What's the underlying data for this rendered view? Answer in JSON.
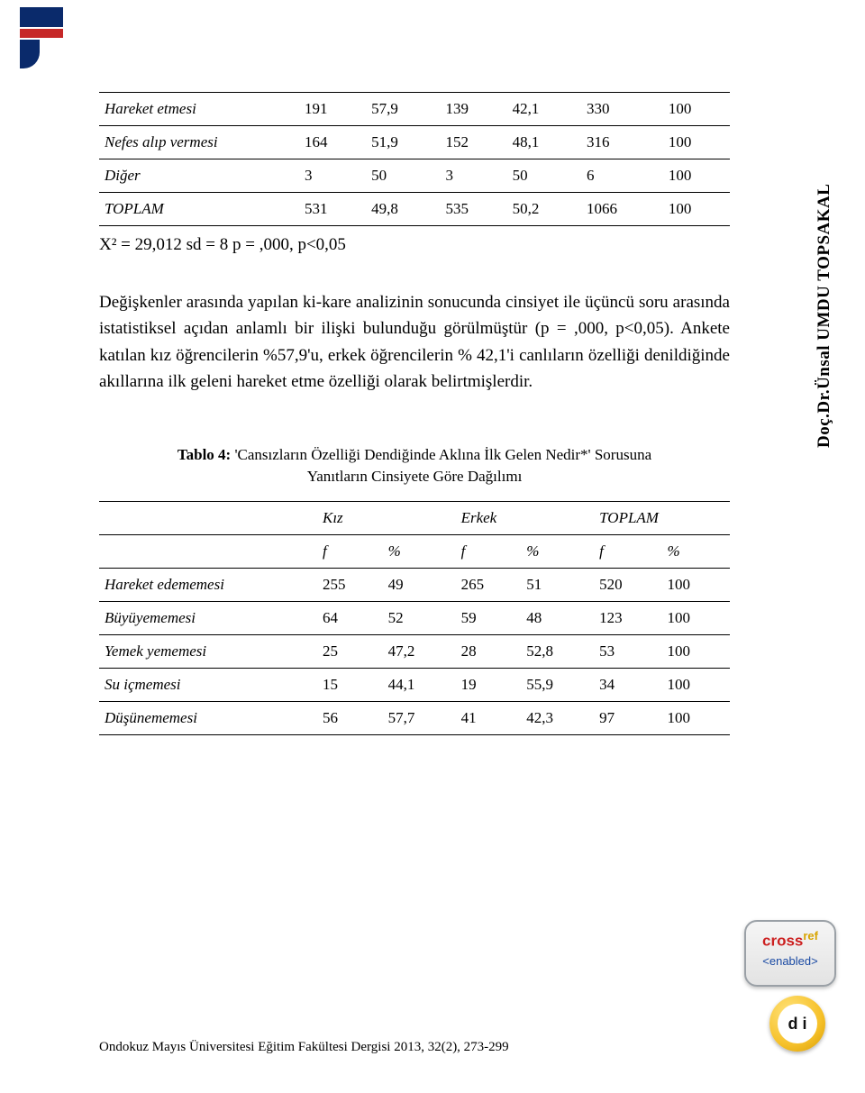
{
  "logo_colors": {
    "blue": "#0a2a6b",
    "red": "#c62828"
  },
  "table1": {
    "rows": [
      {
        "label": "Hareket etmesi",
        "c": [
          "191",
          "57,9",
          "139",
          "42,1",
          "330",
          "100"
        ]
      },
      {
        "label": "Nefes alıp vermesi",
        "c": [
          "164",
          "51,9",
          "152",
          "48,1",
          "316",
          "100"
        ]
      },
      {
        "label": "Diğer",
        "c": [
          "3",
          "50",
          "3",
          "50",
          "6",
          "100"
        ]
      },
      {
        "label": "TOPLAM",
        "c": [
          "531",
          "49,8",
          "535",
          "50,2",
          "1066",
          "100"
        ]
      }
    ]
  },
  "chi_line": "X² = 29,012   sd = 8   p = ,000, p<0,05",
  "paragraph": "Değişkenler arasında yapılan ki-kare analizinin sonucunda cinsiyet ile üçüncü soru arasında istatistiksel açıdan anlamlı bir ilişki bulunduğu görülmüştür (p = ,000, p<0,05). Ankete katılan kız öğrencilerin %57,9'u, erkek öğrencilerin % 42,1'i canlıların özelliği denildiğinde akıllarına ilk geleni hareket etme özelliği olarak belirtmişlerdir.",
  "side_text": "Doç.Dr.Ünsal UMDU TOPSAKAL",
  "table4": {
    "caption_bold": "Tablo 4: ",
    "caption_rest_line1": "'Cansızların Özelliği Dendiğinde Aklına İlk Gelen Nedir*' Sorusuna",
    "caption_rest_line2": "Yanıtların Cinsiyete Göre Dağılımı",
    "group_headers": [
      "Kız",
      "Erkek",
      "TOPLAM"
    ],
    "sub_headers": [
      "f",
      "%",
      "f",
      "%",
      "f",
      "%"
    ],
    "rows": [
      {
        "label": "Hareket edememesi",
        "c": [
          "255",
          "49",
          "265",
          "51",
          "520",
          "100"
        ]
      },
      {
        "label": "Büyüyememesi",
        "c": [
          "64",
          "52",
          "59",
          "48",
          "123",
          "100"
        ]
      },
      {
        "label": "Yemek yememesi",
        "c": [
          "25",
          "47,2",
          "28",
          "52,8",
          "53",
          "100"
        ]
      },
      {
        "label": "Su içmemesi",
        "c": [
          "15",
          "44,1",
          "19",
          "55,9",
          "34",
          "100"
        ]
      },
      {
        "label": "Düşünememesi",
        "c": [
          "56",
          "57,7",
          "41",
          "42,3",
          "97",
          "100"
        ]
      }
    ]
  },
  "crossref": {
    "word1": "cross",
    "word2": "ref",
    "enabled": "<enabled>"
  },
  "doi_label": "d i",
  "footer": "Ondokuz Mayıs Üniversitesi Eğitim Fakültesi Dergisi 2013, 32(2), 273-299"
}
